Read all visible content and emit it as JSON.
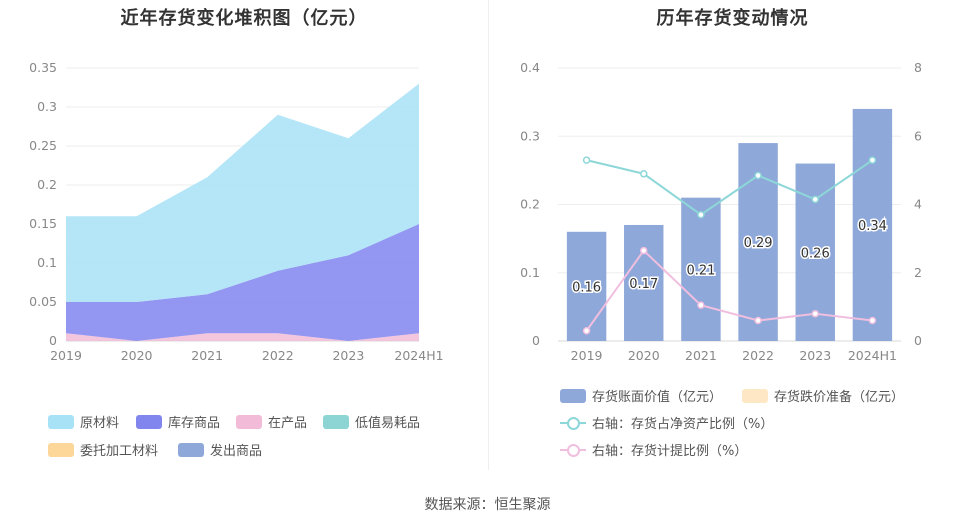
{
  "left_title": "近年存货变化堆积图（亿元）",
  "right_title": "历年存货变动情况",
  "source": "数据来源：恒生聚源",
  "colors": {
    "raw": "#a8e2f7",
    "finished": "#8185ee",
    "wip": "#f2bcd8",
    "low_value": "#8dd5d5",
    "consigned": "#fcd799",
    "shipped": "#8ea8d9",
    "bar": "#8ea8d9",
    "provision": "#fde7c4",
    "line_ratio": "#8ed7d8",
    "line_provision": "#f0bfdf"
  },
  "legend_left": [
    {
      "label": "原材料",
      "color": "#a8e2f7"
    },
    {
      "label": "库存商品",
      "color": "#8185ee"
    },
    {
      "label": "在产品",
      "color": "#f2bcd8"
    },
    {
      "label": "低值易耗品",
      "color": "#8dd5d5"
    },
    {
      "label": "委托加工材料",
      "color": "#fcd799"
    },
    {
      "label": "发出商品",
      "color": "#8ea8d9"
    }
  ],
  "legend_right": [
    {
      "label": "存货账面价值（亿元）",
      "color": "#8ea8d9",
      "kind": "box"
    },
    {
      "label": "存货跌价准备（亿元）",
      "color": "#fde7c4",
      "kind": "box"
    },
    {
      "label": "右轴：存货占净资产比例（%）",
      "color": "#8ed7d8",
      "kind": "line"
    },
    {
      "label": "右轴：存货计提比例（%）",
      "color": "#f0bfdf",
      "kind": "line"
    }
  ],
  "chart_data": [
    {
      "type": "area",
      "stacked": true,
      "title": "近年存货变化堆积图（亿元）",
      "categories": [
        "2019",
        "2020",
        "2021",
        "2022",
        "2023",
        "2024H1"
      ],
      "ylim": [
        0,
        0.35
      ],
      "yticks": [
        "0",
        "0.05",
        "0.1",
        "0.15",
        "0.2",
        "0.25",
        "0.3",
        "0.35"
      ],
      "ytick_values": [
        0,
        0.05,
        0.1,
        0.15,
        0.2,
        0.25,
        0.3,
        0.35
      ],
      "series": [
        {
          "name": "在产品",
          "values": [
            0.01,
            0.0,
            0.01,
            0.01,
            0.0,
            0.01
          ]
        },
        {
          "name": "库存商品",
          "values": [
            0.04,
            0.05,
            0.05,
            0.08,
            0.11,
            0.14
          ]
        },
        {
          "name": "原材料",
          "values": [
            0.11,
            0.11,
            0.15,
            0.2,
            0.15,
            0.18
          ]
        },
        {
          "name": "低值易耗品",
          "values": [
            0,
            0,
            0,
            0,
            0,
            0
          ]
        },
        {
          "name": "委托加工材料",
          "values": [
            0,
            0,
            0,
            0,
            0,
            0
          ]
        },
        {
          "name": "发出商品",
          "values": [
            0,
            0,
            0,
            0,
            0,
            0
          ]
        }
      ]
    },
    {
      "type": "bar",
      "title": "历年存货变动情况",
      "categories": [
        "2019",
        "2020",
        "2021",
        "2022",
        "2023",
        "2024H1"
      ],
      "ylim": [
        0,
        0.4
      ],
      "yticks": [
        "0",
        "0.1",
        "0.2",
        "0.3",
        "0.4"
      ],
      "ytick_values": [
        0,
        0.1,
        0.2,
        0.3,
        0.4
      ],
      "y2lim": [
        0,
        8
      ],
      "y2ticks": [
        "0",
        "2",
        "4",
        "6",
        "8"
      ],
      "y2tick_values": [
        0,
        2,
        4,
        6,
        8
      ],
      "bars": {
        "name": "存货账面价值（亿元）",
        "values": [
          0.16,
          0.17,
          0.21,
          0.29,
          0.26,
          0.34
        ],
        "labels": [
          "0.16",
          "0.17",
          "0.21",
          "0.29",
          "0.26",
          "0.34"
        ]
      },
      "lines": [
        {
          "name": "右轴：存货占净资产比例（%）",
          "values": [
            5.3,
            4.9,
            3.7,
            4.85,
            4.15,
            5.3
          ]
        },
        {
          "name": "右轴：存货计提比例（%）",
          "values": [
            0.3,
            2.65,
            1.05,
            0.6,
            0.8,
            0.6
          ]
        }
      ]
    }
  ]
}
